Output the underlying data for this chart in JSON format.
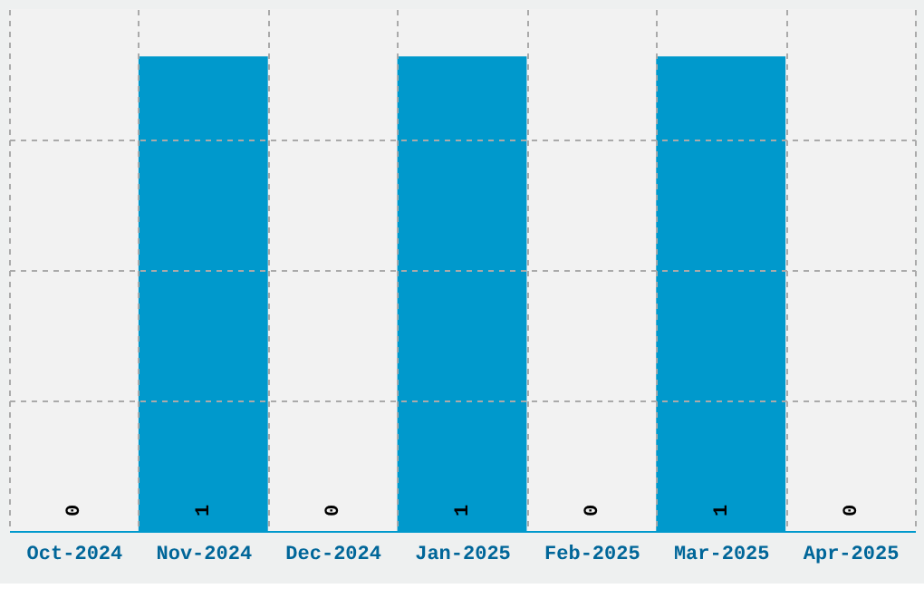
{
  "chart_data": {
    "type": "bar",
    "categories": [
      "Oct-2024",
      "Nov-2024",
      "Dec-2024",
      "Jan-2025",
      "Feb-2025",
      "Mar-2025",
      "Apr-2025"
    ],
    "values": [
      0,
      1,
      0,
      1,
      0,
      1,
      0
    ],
    "color": "#0099cc",
    "data_labels": true,
    "grid": true,
    "tick_labels": "x",
    "ylim": [
      0,
      1.1
    ],
    "yticks": [
      {
        "value": 0.275,
        "label": null
      },
      {
        "value": 0.55,
        "label": null
      },
      {
        "value": 0.825,
        "label": null
      }
    ]
  }
}
